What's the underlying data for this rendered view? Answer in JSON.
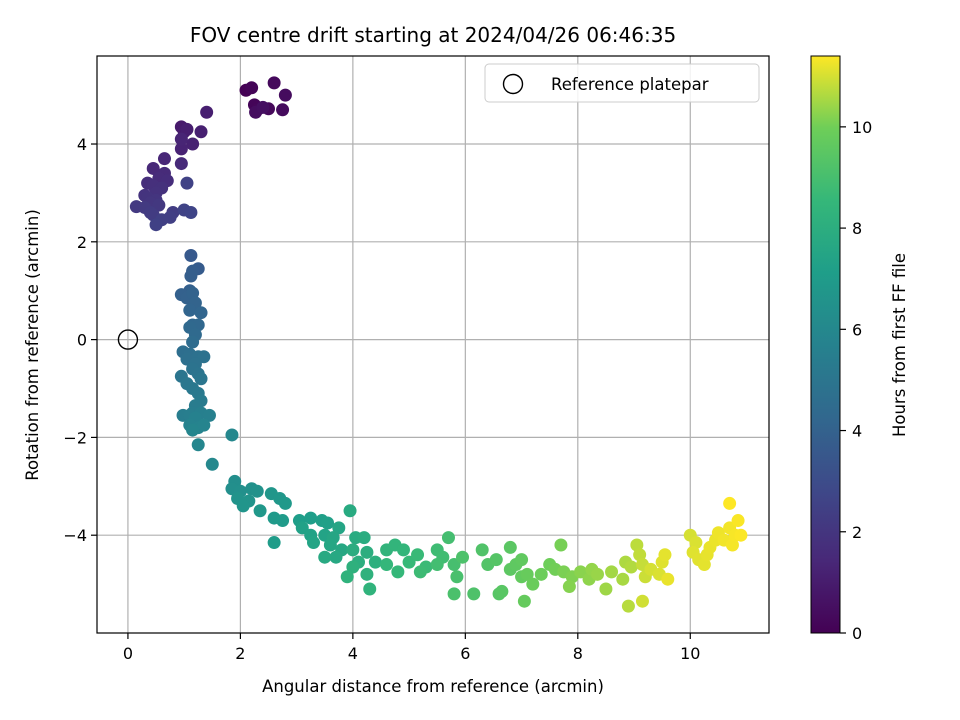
{
  "chart_data": {
    "type": "scatter",
    "title": "FOV centre drift starting at 2024/04/26 06:46:35",
    "xlabel": "Angular distance from reference (arcmin)",
    "ylabel": "Rotation from reference (arcmin)",
    "xlim": [
      -0.55,
      11.4
    ],
    "ylim": [
      -6.0,
      5.8
    ],
    "xticks": [
      0,
      2,
      4,
      6,
      8,
      10
    ],
    "yticks": [
      -4,
      -2,
      0,
      2,
      4
    ],
    "xtick_labels": [
      "0",
      "2",
      "4",
      "6",
      "8",
      "10"
    ],
    "ytick_labels": [
      "−4",
      "−2",
      "0",
      "2",
      "4"
    ],
    "grid": true,
    "legend": {
      "position": "top-right",
      "entries": [
        "Reference platepar"
      ]
    },
    "reference_point": {
      "x": 0,
      "y": 0
    },
    "colorbar": {
      "label": "Hours from first FF file",
      "colormap": "viridis",
      "range": [
        0,
        11.4
      ],
      "ticks": [
        0,
        2,
        4,
        6,
        8,
        10
      ],
      "tick_labels": [
        "0",
        "2",
        "4",
        "6",
        "8",
        "10"
      ]
    },
    "points": [
      {
        "x": 2.1,
        "y": 5.1,
        "t": 0.0
      },
      {
        "x": 2.2,
        "y": 5.15,
        "t": 0.1
      },
      {
        "x": 2.25,
        "y": 4.8,
        "t": 0.15
      },
      {
        "x": 2.3,
        "y": 4.7,
        "t": 0.2
      },
      {
        "x": 2.5,
        "y": 4.72,
        "t": 0.25
      },
      {
        "x": 2.6,
        "y": 5.25,
        "t": 0.3
      },
      {
        "x": 2.75,
        "y": 4.7,
        "t": 0.35
      },
      {
        "x": 2.8,
        "y": 5.0,
        "t": 0.4
      },
      {
        "x": 2.27,
        "y": 4.65,
        "t": 0.45
      },
      {
        "x": 2.4,
        "y": 4.75,
        "t": 0.5
      },
      {
        "x": 0.95,
        "y": 4.35,
        "t": 0.9
      },
      {
        "x": 1.0,
        "y": 4.25,
        "t": 1.0
      },
      {
        "x": 1.05,
        "y": 4.3,
        "t": 1.05
      },
      {
        "x": 1.4,
        "y": 4.65,
        "t": 1.1
      },
      {
        "x": 1.3,
        "y": 4.25,
        "t": 1.15
      },
      {
        "x": 1.15,
        "y": 4.0,
        "t": 1.2
      },
      {
        "x": 0.95,
        "y": 3.9,
        "t": 1.25
      },
      {
        "x": 0.95,
        "y": 4.1,
        "t": 1.3
      },
      {
        "x": 0.65,
        "y": 3.7,
        "t": 1.4
      },
      {
        "x": 0.45,
        "y": 3.5,
        "t": 1.45
      },
      {
        "x": 0.95,
        "y": 3.6,
        "t": 1.5
      },
      {
        "x": 0.65,
        "y": 3.4,
        "t": 1.55
      },
      {
        "x": 0.55,
        "y": 3.3,
        "t": 1.6
      },
      {
        "x": 0.7,
        "y": 3.25,
        "t": 1.65
      },
      {
        "x": 0.35,
        "y": 3.2,
        "t": 1.7
      },
      {
        "x": 0.45,
        "y": 3.15,
        "t": 1.75
      },
      {
        "x": 0.6,
        "y": 3.1,
        "t": 1.8
      },
      {
        "x": 0.5,
        "y": 3.0,
        "t": 1.85
      },
      {
        "x": 0.3,
        "y": 2.95,
        "t": 1.9
      },
      {
        "x": 0.35,
        "y": 2.9,
        "t": 1.95
      },
      {
        "x": 0.5,
        "y": 2.85,
        "t": 2.0
      },
      {
        "x": 0.4,
        "y": 2.8,
        "t": 2.05
      },
      {
        "x": 0.55,
        "y": 2.75,
        "t": 2.1
      },
      {
        "x": 0.15,
        "y": 2.72,
        "t": 2.15
      },
      {
        "x": 0.3,
        "y": 2.7,
        "t": 2.2
      },
      {
        "x": 0.4,
        "y": 2.6,
        "t": 2.25
      },
      {
        "x": 0.45,
        "y": 2.55,
        "t": 2.3
      },
      {
        "x": 0.8,
        "y": 2.6,
        "t": 2.35
      },
      {
        "x": 0.75,
        "y": 2.5,
        "t": 2.4
      },
      {
        "x": 0.6,
        "y": 2.45,
        "t": 2.45
      },
      {
        "x": 0.5,
        "y": 2.35,
        "t": 2.5
      },
      {
        "x": 1.05,
        "y": 3.2,
        "t": 2.55
      },
      {
        "x": 1.0,
        "y": 2.65,
        "t": 2.6
      },
      {
        "x": 1.12,
        "y": 2.6,
        "t": 2.65
      },
      {
        "x": 1.12,
        "y": 1.72,
        "t": 3.6
      },
      {
        "x": 1.25,
        "y": 1.45,
        "t": 3.7
      },
      {
        "x": 1.15,
        "y": 1.4,
        "t": 3.75
      },
      {
        "x": 1.12,
        "y": 1.3,
        "t": 3.8
      },
      {
        "x": 1.1,
        "y": 1.0,
        "t": 3.9
      },
      {
        "x": 0.95,
        "y": 0.92,
        "t": 3.95
      },
      {
        "x": 1.05,
        "y": 0.85,
        "t": 4.0
      },
      {
        "x": 1.15,
        "y": 0.95,
        "t": 4.05
      },
      {
        "x": 1.2,
        "y": 0.75,
        "t": 4.1
      },
      {
        "x": 1.1,
        "y": 0.6,
        "t": 4.15
      },
      {
        "x": 1.3,
        "y": 0.55,
        "t": 4.2
      },
      {
        "x": 1.15,
        "y": 0.3,
        "t": 4.25
      },
      {
        "x": 1.25,
        "y": 0.3,
        "t": 4.3
      },
      {
        "x": 1.1,
        "y": 0.25,
        "t": 4.35
      },
      {
        "x": 1.2,
        "y": 0.1,
        "t": 4.4
      },
      {
        "x": 1.15,
        "y": -0.05,
        "t": 4.5
      },
      {
        "x": 0.98,
        "y": -0.25,
        "t": 4.6
      },
      {
        "x": 1.1,
        "y": -0.3,
        "t": 4.65
      },
      {
        "x": 1.05,
        "y": -0.4,
        "t": 4.7
      },
      {
        "x": 1.25,
        "y": -0.35,
        "t": 4.75
      },
      {
        "x": 1.35,
        "y": -0.35,
        "t": 4.8
      },
      {
        "x": 1.2,
        "y": -0.5,
        "t": 4.85
      },
      {
        "x": 1.15,
        "y": -0.6,
        "t": 4.9
      },
      {
        "x": 1.25,
        "y": -0.7,
        "t": 4.95
      },
      {
        "x": 0.95,
        "y": -0.75,
        "t": 5.0
      },
      {
        "x": 1.3,
        "y": -0.8,
        "t": 5.05
      },
      {
        "x": 1.05,
        "y": -0.9,
        "t": 5.1
      },
      {
        "x": 1.15,
        "y": -1.0,
        "t": 5.15
      },
      {
        "x": 1.25,
        "y": -1.1,
        "t": 5.2
      },
      {
        "x": 1.3,
        "y": -1.25,
        "t": 5.3
      },
      {
        "x": 1.2,
        "y": -1.35,
        "t": 5.35
      },
      {
        "x": 1.15,
        "y": -1.5,
        "t": 5.4
      },
      {
        "x": 0.98,
        "y": -1.55,
        "t": 5.45
      },
      {
        "x": 1.1,
        "y": -1.55,
        "t": 5.5
      },
      {
        "x": 1.3,
        "y": -1.5,
        "t": 5.55
      },
      {
        "x": 1.45,
        "y": -1.55,
        "t": 5.6
      },
      {
        "x": 1.2,
        "y": -1.6,
        "t": 5.65
      },
      {
        "x": 1.1,
        "y": -1.75,
        "t": 5.7
      },
      {
        "x": 1.25,
        "y": -1.8,
        "t": 5.75
      },
      {
        "x": 1.35,
        "y": -1.75,
        "t": 5.8
      },
      {
        "x": 1.15,
        "y": -1.85,
        "t": 5.85
      },
      {
        "x": 1.25,
        "y": -2.15,
        "t": 5.9
      },
      {
        "x": 1.85,
        "y": -1.95,
        "t": 5.95
      },
      {
        "x": 1.5,
        "y": -2.55,
        "t": 6.0
      },
      {
        "x": 1.9,
        "y": -2.9,
        "t": 6.3
      },
      {
        "x": 1.85,
        "y": -3.05,
        "t": 6.35
      },
      {
        "x": 2.0,
        "y": -3.1,
        "t": 6.4
      },
      {
        "x": 2.2,
        "y": -3.05,
        "t": 6.45
      },
      {
        "x": 2.3,
        "y": -3.1,
        "t": 6.5
      },
      {
        "x": 1.95,
        "y": -3.25,
        "t": 6.55
      },
      {
        "x": 2.15,
        "y": -3.3,
        "t": 6.6
      },
      {
        "x": 2.05,
        "y": -3.4,
        "t": 6.65
      },
      {
        "x": 2.55,
        "y": -3.15,
        "t": 6.7
      },
      {
        "x": 2.7,
        "y": -3.25,
        "t": 6.75
      },
      {
        "x": 2.35,
        "y": -3.5,
        "t": 6.8
      },
      {
        "x": 2.8,
        "y": -3.35,
        "t": 6.85
      },
      {
        "x": 2.6,
        "y": -3.65,
        "t": 6.9
      },
      {
        "x": 2.75,
        "y": -3.7,
        "t": 6.95
      },
      {
        "x": 2.6,
        "y": -4.15,
        "t": 7.0
      },
      {
        "x": 3.05,
        "y": -3.7,
        "t": 7.1
      },
      {
        "x": 3.25,
        "y": -3.65,
        "t": 7.15
      },
      {
        "x": 3.45,
        "y": -3.7,
        "t": 7.2
      },
      {
        "x": 3.55,
        "y": -3.75,
        "t": 7.25
      },
      {
        "x": 3.1,
        "y": -3.85,
        "t": 7.3
      },
      {
        "x": 3.25,
        "y": -4.0,
        "t": 7.35
      },
      {
        "x": 3.5,
        "y": -4.0,
        "t": 7.4
      },
      {
        "x": 3.3,
        "y": -4.15,
        "t": 7.45
      },
      {
        "x": 3.75,
        "y": -3.85,
        "t": 7.5
      },
      {
        "x": 3.65,
        "y": -4.05,
        "t": 7.55
      },
      {
        "x": 3.6,
        "y": -4.2,
        "t": 7.6
      },
      {
        "x": 3.8,
        "y": -4.3,
        "t": 7.65
      },
      {
        "x": 3.7,
        "y": -4.45,
        "t": 7.7
      },
      {
        "x": 3.5,
        "y": -4.45,
        "t": 7.75
      },
      {
        "x": 3.95,
        "y": -3.5,
        "t": 7.8
      },
      {
        "x": 4.05,
        "y": -4.05,
        "t": 7.85
      },
      {
        "x": 4.2,
        "y": -4.05,
        "t": 7.9
      },
      {
        "x": 4.0,
        "y": -4.3,
        "t": 7.95
      },
      {
        "x": 4.25,
        "y": -4.35,
        "t": 8.0
      },
      {
        "x": 4.1,
        "y": -4.55,
        "t": 8.05
      },
      {
        "x": 4.4,
        "y": -4.55,
        "t": 8.1
      },
      {
        "x": 4.0,
        "y": -4.65,
        "t": 8.15
      },
      {
        "x": 4.25,
        "y": -4.8,
        "t": 8.2
      },
      {
        "x": 3.9,
        "y": -4.85,
        "t": 8.25
      },
      {
        "x": 4.3,
        "y": -5.1,
        "t": 8.3
      },
      {
        "x": 4.6,
        "y": -4.3,
        "t": 8.35
      },
      {
        "x": 4.75,
        "y": -4.2,
        "t": 8.4
      },
      {
        "x": 4.9,
        "y": -4.3,
        "t": 8.45
      },
      {
        "x": 4.6,
        "y": -4.6,
        "t": 8.5
      },
      {
        "x": 4.8,
        "y": -4.75,
        "t": 8.55
      },
      {
        "x": 5.0,
        "y": -4.55,
        "t": 8.6
      },
      {
        "x": 5.15,
        "y": -4.4,
        "t": 8.65
      },
      {
        "x": 5.3,
        "y": -4.65,
        "t": 8.7
      },
      {
        "x": 5.2,
        "y": -4.75,
        "t": 8.75
      },
      {
        "x": 5.5,
        "y": -4.3,
        "t": 8.8
      },
      {
        "x": 5.6,
        "y": -4.45,
        "t": 8.85
      },
      {
        "x": 5.5,
        "y": -4.6,
        "t": 8.9
      },
      {
        "x": 5.7,
        "y": -4.05,
        "t": 8.95
      },
      {
        "x": 5.8,
        "y": -4.6,
        "t": 9.0
      },
      {
        "x": 5.85,
        "y": -4.85,
        "t": 9.05
      },
      {
        "x": 5.8,
        "y": -5.2,
        "t": 9.1
      },
      {
        "x": 5.95,
        "y": -4.45,
        "t": 9.15
      },
      {
        "x": 6.15,
        "y": -5.2,
        "t": 9.2
      },
      {
        "x": 6.3,
        "y": -4.3,
        "t": 9.25
      },
      {
        "x": 6.4,
        "y": -4.6,
        "t": 9.3
      },
      {
        "x": 6.55,
        "y": -4.5,
        "t": 9.35
      },
      {
        "x": 6.6,
        "y": -5.2,
        "t": 9.4
      },
      {
        "x": 6.65,
        "y": -5.15,
        "t": 9.45
      },
      {
        "x": 6.8,
        "y": -4.25,
        "t": 9.5
      },
      {
        "x": 6.8,
        "y": -4.7,
        "t": 9.55
      },
      {
        "x": 6.9,
        "y": -4.6,
        "t": 9.6
      },
      {
        "x": 7.0,
        "y": -4.5,
        "t": 9.65
      },
      {
        "x": 7.0,
        "y": -4.85,
        "t": 9.7
      },
      {
        "x": 7.05,
        "y": -5.35,
        "t": 9.75
      },
      {
        "x": 7.1,
        "y": -4.8,
        "t": 9.8
      },
      {
        "x": 7.2,
        "y": -5.0,
        "t": 9.85
      },
      {
        "x": 7.35,
        "y": -4.8,
        "t": 9.9
      },
      {
        "x": 7.5,
        "y": -4.6,
        "t": 9.95
      },
      {
        "x": 7.6,
        "y": -4.7,
        "t": 10.0
      },
      {
        "x": 7.7,
        "y": -4.2,
        "t": 10.05
      },
      {
        "x": 7.75,
        "y": -4.75,
        "t": 10.1
      },
      {
        "x": 7.9,
        "y": -4.85,
        "t": 10.15
      },
      {
        "x": 7.85,
        "y": -5.05,
        "t": 10.2
      },
      {
        "x": 8.05,
        "y": -4.75,
        "t": 10.25
      },
      {
        "x": 8.2,
        "y": -4.9,
        "t": 10.3
      },
      {
        "x": 8.25,
        "y": -4.7,
        "t": 10.35
      },
      {
        "x": 8.35,
        "y": -4.8,
        "t": 10.4
      },
      {
        "x": 8.5,
        "y": -5.1,
        "t": 10.45
      },
      {
        "x": 8.6,
        "y": -4.75,
        "t": 10.5
      },
      {
        "x": 8.8,
        "y": -4.9,
        "t": 10.55
      },
      {
        "x": 8.85,
        "y": -4.55,
        "t": 10.6
      },
      {
        "x": 8.95,
        "y": -4.65,
        "t": 10.65
      },
      {
        "x": 8.9,
        "y": -5.45,
        "t": 10.7
      },
      {
        "x": 9.05,
        "y": -4.2,
        "t": 10.75
      },
      {
        "x": 9.1,
        "y": -4.4,
        "t": 10.8
      },
      {
        "x": 9.15,
        "y": -4.6,
        "t": 10.85
      },
      {
        "x": 9.2,
        "y": -4.85,
        "t": 10.9
      },
      {
        "x": 9.15,
        "y": -5.35,
        "t": 10.95
      },
      {
        "x": 9.3,
        "y": -4.7,
        "t": 11.0
      },
      {
        "x": 9.45,
        "y": -4.8,
        "t": 11.05
      },
      {
        "x": 9.5,
        "y": -4.55,
        "t": 11.1
      },
      {
        "x": 9.55,
        "y": -4.4,
        "t": 11.15
      },
      {
        "x": 9.6,
        "y": -4.9,
        "t": 11.2
      },
      {
        "x": 10.0,
        "y": -4.0,
        "t": 11.0
      },
      {
        "x": 10.1,
        "y": -4.15,
        "t": 11.05
      },
      {
        "x": 10.05,
        "y": -4.35,
        "t": 11.1
      },
      {
        "x": 10.15,
        "y": -4.5,
        "t": 11.12
      },
      {
        "x": 10.25,
        "y": -4.6,
        "t": 11.15
      },
      {
        "x": 10.3,
        "y": -4.4,
        "t": 11.18
      },
      {
        "x": 10.35,
        "y": -4.25,
        "t": 11.2
      },
      {
        "x": 10.45,
        "y": -4.1,
        "t": 11.22
      },
      {
        "x": 10.5,
        "y": -3.95,
        "t": 11.25
      },
      {
        "x": 10.6,
        "y": -4.1,
        "t": 11.28
      },
      {
        "x": 10.7,
        "y": -3.85,
        "t": 11.3
      },
      {
        "x": 10.75,
        "y": -4.2,
        "t": 11.32
      },
      {
        "x": 10.8,
        "y": -4.0,
        "t": 11.34
      },
      {
        "x": 10.85,
        "y": -3.7,
        "t": 11.36
      },
      {
        "x": 10.9,
        "y": -4.0,
        "t": 11.38
      },
      {
        "x": 10.7,
        "y": -3.35,
        "t": 11.4
      }
    ]
  }
}
